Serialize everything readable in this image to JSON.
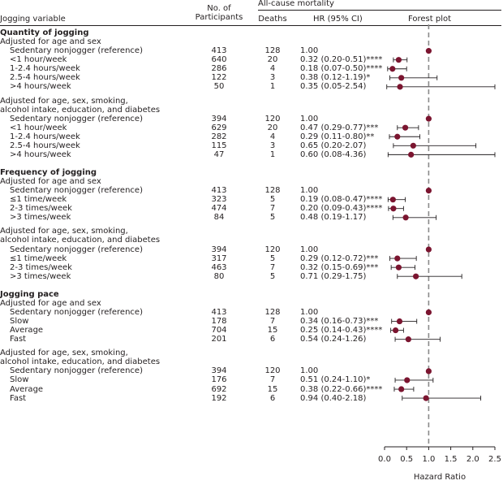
{
  "headers": {
    "variable": "Jogging variable",
    "participants_line1": "No. of",
    "participants_line2": "Participants",
    "group": "All-cause mortality",
    "deaths": "Deaths",
    "hr": "HR (95% CI)",
    "forest": "Forest plot"
  },
  "colors": {
    "marker": "#7b1530",
    "refline": "#8a8a8a",
    "text": "#231f20"
  },
  "chart_data": {
    "type": "forest",
    "xlabel": "Hazard Ratio",
    "xlim": [
      0.0,
      2.5
    ],
    "xticks": [
      0.0,
      0.5,
      1.0,
      1.5,
      2.0,
      2.5
    ],
    "tick_labels": [
      "0.0",
      "0.5",
      "1.0",
      "1.5",
      "2.0",
      "2.5"
    ],
    "reference_line": 1.0,
    "ci_upper_display_cap": 2.5,
    "sections": [
      {
        "title": "Quantity of jogging",
        "models": [
          {
            "label": [
              "Adjusted for age and sex"
            ],
            "rows": [
              {
                "label": "Sedentary nonjogger (reference)",
                "n": "413",
                "deaths": "128",
                "hr_text": "1.00",
                "hr": 1.0,
                "lo": null,
                "hi": null
              },
              {
                "label": "<1 hour/week",
                "n": "640",
                "deaths": "20",
                "hr_text": "0.32 (0.20-0.51)****",
                "hr": 0.32,
                "lo": 0.2,
                "hi": 0.51
              },
              {
                "label": "1-2.4 hours/week",
                "n": "286",
                "deaths": "4",
                "hr_text": "0.18 (0.07-0.50)****",
                "hr": 0.18,
                "lo": 0.07,
                "hi": 0.5
              },
              {
                "label": "2.5-4 hours/week",
                "n": "122",
                "deaths": "3",
                "hr_text": "0.38 (0.12-1.19)*",
                "hr": 0.38,
                "lo": 0.12,
                "hi": 1.19
              },
              {
                "label": ">4 hours/week",
                "n": "50",
                "deaths": "1",
                "hr_text": "0.35 (0.05-2.54)",
                "hr": 0.35,
                "lo": 0.05,
                "hi": 2.54
              }
            ]
          },
          {
            "label": [
              "Adjusted for age, sex, smoking,",
              "alcohol intake, education, and diabetes"
            ],
            "rows": [
              {
                "label": "Sedentary nonjogger (reference)",
                "n": "394",
                "deaths": "120",
                "hr_text": "1.00",
                "hr": 1.0,
                "lo": null,
                "hi": null
              },
              {
                "label": "<1 hour/week",
                "n": "629",
                "deaths": "20",
                "hr_text": "0.47 (0.29-0.77)***",
                "hr": 0.47,
                "lo": 0.29,
                "hi": 0.77
              },
              {
                "label": "1-2.4 hours/week",
                "n": "282",
                "deaths": "4",
                "hr_text": "0.29 (0.11-0.80)**",
                "hr": 0.29,
                "lo": 0.11,
                "hi": 0.8
              },
              {
                "label": "2.5-4 hours/week",
                "n": "115",
                "deaths": "3",
                "hr_text": "0.65 (0.20-2.07)",
                "hr": 0.65,
                "lo": 0.2,
                "hi": 2.07
              },
              {
                "label": ">4 hours/week",
                "n": "47",
                "deaths": "1",
                "hr_text": "0.60 (0.08-4.36)",
                "hr": 0.6,
                "lo": 0.08,
                "hi": 4.36
              }
            ]
          }
        ]
      },
      {
        "title": "Frequency of jogging",
        "models": [
          {
            "label": [
              "Adjusted for age and sex"
            ],
            "rows": [
              {
                "label": "Sedentary nonjogger (reference)",
                "n": "413",
                "deaths": "128",
                "hr_text": "1.00",
                "hr": 1.0,
                "lo": null,
                "hi": null
              },
              {
                "label": "≤1 time/week",
                "n": "323",
                "deaths": "5",
                "hr_text": "0.19 (0.08-0.47)****",
                "hr": 0.19,
                "lo": 0.08,
                "hi": 0.47
              },
              {
                "label": "2-3 times/week",
                "n": "474",
                "deaths": "7",
                "hr_text": "0.20 (0.09-0.43)****",
                "hr": 0.2,
                "lo": 0.09,
                "hi": 0.43
              },
              {
                "label": ">3 times/week",
                "n": "84",
                "deaths": "5",
                "hr_text": "0.48 (0.19-1.17)",
                "hr": 0.48,
                "lo": 0.19,
                "hi": 1.17
              }
            ]
          },
          {
            "label": [
              "Adjusted for age, sex, smoking,",
              "alcohol intake, education, and diabetes"
            ],
            "rows": [
              {
                "label": "Sedentary nonjogger (reference)",
                "n": "394",
                "deaths": "120",
                "hr_text": "1.00",
                "hr": 1.0,
                "lo": null,
                "hi": null
              },
              {
                "label": "≤1 time/week",
                "n": "317",
                "deaths": "5",
                "hr_text": "0.29 (0.12-0.72)***",
                "hr": 0.29,
                "lo": 0.12,
                "hi": 0.72
              },
              {
                "label": "2-3 times/week",
                "n": "463",
                "deaths": "7",
                "hr_text": "0.32 (0.15-0.69)***",
                "hr": 0.32,
                "lo": 0.15,
                "hi": 0.69
              },
              {
                "label": ">3 times/week",
                "n": "80",
                "deaths": "5",
                "hr_text": "0.71 (0.29-1.75)",
                "hr": 0.71,
                "lo": 0.29,
                "hi": 1.75
              }
            ]
          }
        ]
      },
      {
        "title": "Jogging pace",
        "models": [
          {
            "label": [
              "Adjusted for age and sex"
            ],
            "rows": [
              {
                "label": "Sedentary nonjogger (reference)",
                "n": "413",
                "deaths": "128",
                "hr_text": "1.00",
                "hr": 1.0,
                "lo": null,
                "hi": null
              },
              {
                "label": "Slow",
                "n": "178",
                "deaths": "7",
                "hr_text": "0.34 (0.16-0.73)***",
                "hr": 0.34,
                "lo": 0.16,
                "hi": 0.73
              },
              {
                "label": "Average",
                "n": "704",
                "deaths": "15",
                "hr_text": "0.25 (0.14-0.43)****",
                "hr": 0.25,
                "lo": 0.14,
                "hi": 0.43
              },
              {
                "label": "Fast",
                "n": "201",
                "deaths": "6",
                "hr_text": "0.54 (0.24-1.26)",
                "hr": 0.54,
                "lo": 0.24,
                "hi": 1.26
              }
            ]
          },
          {
            "label": [
              "Adjusted for age, sex, smoking,",
              "alcohol intake, education, and diabetes"
            ],
            "rows": [
              {
                "label": "Sedentary nonjogger (reference)",
                "n": "394",
                "deaths": "120",
                "hr_text": "1.00",
                "hr": 1.0,
                "lo": null,
                "hi": null
              },
              {
                "label": "Slow",
                "n": "176",
                "deaths": "7",
                "hr_text": "0.51 (0.24-1.10)*",
                "hr": 0.51,
                "lo": 0.24,
                "hi": 1.1
              },
              {
                "label": "Average",
                "n": "692",
                "deaths": "15",
                "hr_text": "0.38 (0.22-0.66)****",
                "hr": 0.38,
                "lo": 0.22,
                "hi": 0.66
              },
              {
                "label": "Fast",
                "n": "192",
                "deaths": "6",
                "hr_text": "0.94 (0.40-2.18)",
                "hr": 0.94,
                "lo": 0.4,
                "hi": 2.18
              }
            ]
          }
        ]
      }
    ]
  }
}
